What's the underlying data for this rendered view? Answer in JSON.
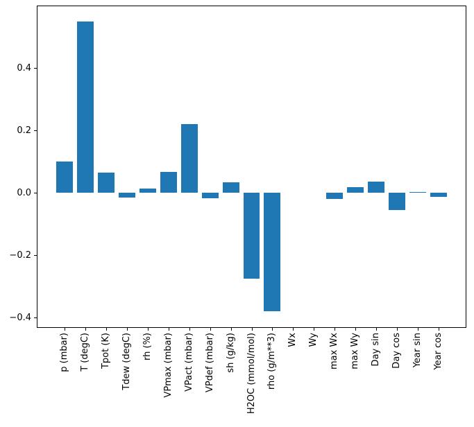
{
  "chart_data": {
    "type": "bar",
    "title": "",
    "xlabel": "",
    "ylabel": "",
    "categories": [
      "p (mbar)",
      "T (degC)",
      "Tpot (K)",
      "Tdew (degC)",
      "rh (%)",
      "VPmax (mbar)",
      "VPact (mbar)",
      "VPdef (mbar)",
      "sh (g/kg)",
      "H2OC (mmol/mol)",
      "rho (g/m**3)",
      "Wx",
      "Wy",
      "max Wx",
      "max Wy",
      "Day sin",
      "Day cos",
      "Year sin",
      "Year cos"
    ],
    "values": [
      0.1,
      0.55,
      0.065,
      -0.016,
      0.014,
      0.068,
      0.22,
      -0.018,
      0.035,
      -0.275,
      -0.38,
      0.0,
      0.0,
      -0.019,
      0.018,
      0.036,
      -0.055,
      0.003,
      -0.013
    ],
    "yticks": [
      -0.4,
      -0.2,
      0.0,
      0.2,
      0.4
    ],
    "ytick_labels": [
      "−0.4",
      "−0.2",
      "0.0",
      "0.2",
      "0.4"
    ],
    "ylim": [
      -0.433,
      0.601
    ],
    "xlim": [
      -1.34,
      19.34
    ],
    "bar_width_units": 0.8,
    "bar_color": "#1f77b4",
    "axis_color": "#000000",
    "grid": false,
    "legend": null
  }
}
